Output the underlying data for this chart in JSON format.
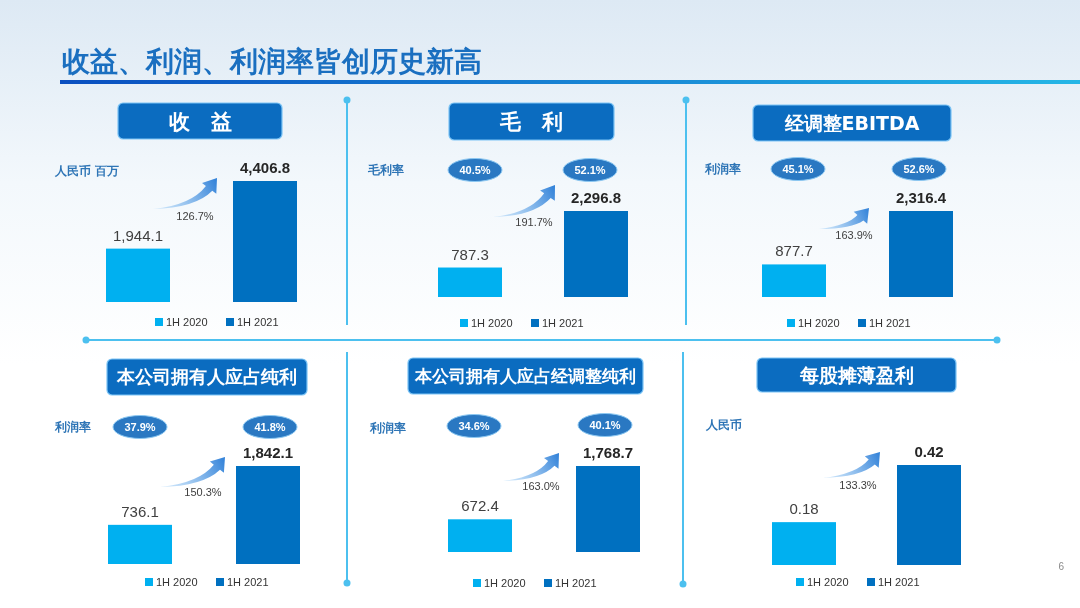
{
  "chart_data": [
    {
      "type": "other",
      "title": "收益、利润、利润率皆创历史新高",
      "annotations": [
        "6"
      ]
    },
    {
      "type": "bar",
      "title": "收　益",
      "ylabel": "人民币 百万",
      "categories": [
        null,
        null
      ],
      "stacked": true,
      "series": [
        {
          "name": "1H 2020",
          "color": "#00b0f0",
          "values": [
            1944.1,
            null
          ],
          "value_labels": [
            "1,944.1",
            null
          ]
        },
        {
          "name": "1H 2021",
          "color": "#0070c0",
          "values": [
            null,
            4406.8
          ],
          "value_labels": [
            null,
            "4,406.8"
          ]
        }
      ],
      "legend": "bottom",
      "annotations": [
        "126.7%"
      ]
    },
    {
      "type": "bar",
      "title": "毛　利",
      "categories": [
        null,
        null
      ],
      "stacked": true,
      "series": [
        {
          "name": "1H 2020",
          "color": "#00b0f0",
          "values": [
            787.3,
            null
          ],
          "value_labels": [
            "787.3",
            null
          ]
        },
        {
          "name": "1H 2021",
          "color": "#0070c0",
          "values": [
            null,
            2296.8
          ],
          "value_labels": [
            null,
            "2,296.8"
          ]
        }
      ],
      "legend": "bottom",
      "annotations": [
        "191.7%",
        "毛利率",
        "40.5%",
        "52.1%"
      ]
    },
    {
      "type": "bar",
      "title": "经调整EBITDA",
      "categories": [
        null,
        null
      ],
      "stacked": true,
      "series": [
        {
          "name": "1H 2020",
          "color": "#00b0f0",
          "values": [
            877.7,
            null
          ],
          "value_labels": [
            "877.7",
            null
          ]
        },
        {
          "name": "1H 2021",
          "color": "#0070c0",
          "values": [
            null,
            2316.4
          ],
          "value_labels": [
            null,
            "2,316.4"
          ]
        }
      ],
      "legend": "bottom",
      "annotations": [
        "163.9%",
        "利润率",
        "45.1%",
        "52.6%"
      ]
    },
    {
      "type": "bar",
      "title": "本公司拥有人应占纯利",
      "categories": [
        null,
        null
      ],
      "stacked": true,
      "series": [
        {
          "name": "1H 2020",
          "color": "#00b0f0",
          "values": [
            736.1,
            null
          ],
          "value_labels": [
            "736.1",
            null
          ]
        },
        {
          "name": "1H 2021",
          "color": "#0070c0",
          "values": [
            null,
            1842.1
          ],
          "value_labels": [
            null,
            "1,842.1"
          ]
        }
      ],
      "legend": "bottom",
      "annotations": [
        "150.3%",
        "利润率",
        "37.9%",
        "41.8%"
      ]
    },
    {
      "type": "bar",
      "title": "本公司拥有人应占经调整纯利",
      "categories": [
        null,
        null
      ],
      "stacked": true,
      "series": [
        {
          "name": "1H 2020",
          "color": "#00b0f0",
          "values": [
            672.4,
            null
          ],
          "value_labels": [
            "672.4",
            null
          ]
        },
        {
          "name": "1H 2021",
          "color": "#0070c0",
          "values": [
            null,
            1768.7
          ],
          "value_labels": [
            null,
            "1,768.7"
          ]
        }
      ],
      "legend": "bottom",
      "annotations": [
        "163.0%",
        "利润率",
        "34.6%",
        "40.1%"
      ]
    },
    {
      "type": "bar",
      "title": "每股摊薄盈利",
      "ylabel": "人民币",
      "categories": [
        null,
        null
      ],
      "stacked": true,
      "series": [
        {
          "name": "1H 2020",
          "color": "#00b0f0",
          "values": [
            0.18,
            null
          ],
          "value_labels": [
            "0.18",
            null
          ]
        },
        {
          "name": "1H 2021",
          "color": "#0070c0",
          "values": [
            null,
            0.42
          ],
          "value_labels": [
            null,
            "0.42"
          ]
        }
      ],
      "legend": "bottom",
      "annotations": [
        "133.3%"
      ]
    }
  ]
}
